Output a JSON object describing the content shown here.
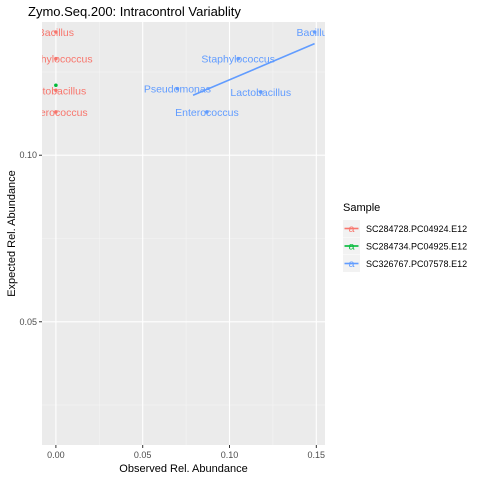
{
  "chart_data": {
    "type": "scatter",
    "title": "Zymo.Seq.200: Intracontrol Variablity",
    "xlabel": "Observed Rel. Abundance",
    "ylabel": "Expected Rel. Abundance",
    "xlim": [
      -0.008,
      0.155
    ],
    "ylim": [
      0.013,
      0.14
    ],
    "x_ticks": [
      0.0,
      0.05,
      0.1,
      0.15
    ],
    "x_tick_labels": [
      "0.00",
      "0.05",
      "0.10",
      "0.15"
    ],
    "y_ticks": [
      0.05,
      0.1
    ],
    "y_tick_labels": [
      "0.05",
      "0.10"
    ],
    "grid": true,
    "legend": {
      "title": "Sample",
      "position": "right",
      "entries": [
        "SC284728.PC04924.E12",
        "SC284734.PC04925.E12",
        "SC326767.PC07578.E12"
      ],
      "key_glyph": "a"
    },
    "series": [
      {
        "name": "SC284728.PC04924.E12",
        "color": "#F8766D",
        "points": [
          {
            "label": "Bacillus",
            "x": 0.0,
            "y": 0.137
          },
          {
            "label": "Staphylococcus",
            "x": 0.0,
            "y": 0.129
          },
          {
            "label": "Lactobacillus",
            "x": 0.0,
            "y": 0.1195
          },
          {
            "label": "Enterococcus",
            "x": 0.0,
            "y": 0.113
          }
        ],
        "visible_label_text": [
          "acillus",
          "ylococcus",
          "obacillus",
          "erococcus"
        ]
      },
      {
        "name": "SC284734.PC04925.E12",
        "color": "#00BA38",
        "points": [
          {
            "label": "",
            "x": 0.0,
            "y": 0.121
          }
        ]
      },
      {
        "name": "SC326767.PC07578.E12",
        "color": "#619CFF",
        "points": [
          {
            "label": "Bacillus",
            "x": 0.149,
            "y": 0.137
          },
          {
            "label": "Staphylococcus",
            "x": 0.105,
            "y": 0.129
          },
          {
            "label": "Pseudomonas",
            "x": 0.07,
            "y": 0.12
          },
          {
            "label": "Lactobacillus",
            "x": 0.118,
            "y": 0.119
          },
          {
            "label": "Enterococcus",
            "x": 0.087,
            "y": 0.113
          }
        ],
        "trend_line": {
          "x": [
            0.079,
            0.149
          ],
          "y": [
            0.118,
            0.1335
          ]
        }
      }
    ]
  }
}
